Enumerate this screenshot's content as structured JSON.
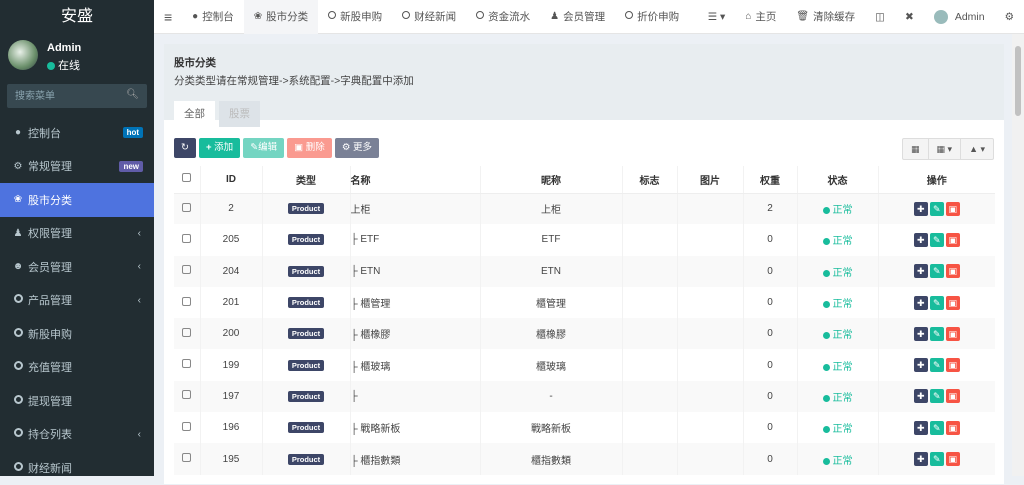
{
  "app": {
    "title": "安盛"
  },
  "user": {
    "name": "Admin",
    "status": "在线"
  },
  "search": {
    "placeholder": "搜索菜单"
  },
  "sidebar": {
    "items": [
      {
        "label": "控制台",
        "icon": "dashboard-icon",
        "badge": "hot",
        "badge_color": "#0073b7"
      },
      {
        "label": "常规管理",
        "icon": "cogs-icon",
        "badge": "new",
        "badge_color": "#605ca8"
      },
      {
        "label": "股市分类",
        "icon": "leaf-icon",
        "active": true
      },
      {
        "label": "权限管理",
        "icon": "users-icon",
        "chevron": true
      },
      {
        "label": "会员管理",
        "icon": "user-circle-icon",
        "chevron": true
      },
      {
        "label": "产品管理",
        "icon": "circle-icon",
        "chevron": true
      },
      {
        "label": "新股申购",
        "icon": "circle-icon"
      },
      {
        "label": "充值管理",
        "icon": "circle-icon"
      },
      {
        "label": "提现管理",
        "icon": "circle-icon"
      },
      {
        "label": "持仓列表",
        "icon": "circle-icon",
        "chevron": true
      },
      {
        "label": "财经新闻",
        "icon": "circle-icon"
      }
    ]
  },
  "topnav": {
    "tabs": [
      {
        "label": "控制台",
        "icon": "dashboard-icon"
      },
      {
        "label": "股市分类",
        "icon": "leaf-icon",
        "active": true
      },
      {
        "label": "新股申购",
        "icon": "circle-icon"
      },
      {
        "label": "财经新闻",
        "icon": "circle-icon"
      },
      {
        "label": "资金流水",
        "icon": "circle-icon"
      },
      {
        "label": "会员管理",
        "icon": "user-icon"
      },
      {
        "label": "折价申购",
        "icon": "circle-icon"
      }
    ],
    "home": "主页",
    "clear_cache": "清除缓存",
    "admin": "Admin"
  },
  "panel": {
    "title": "股市分类",
    "description": "分类类型请在常规管理->系统配置->字典配置中添加",
    "tabs": [
      "全部",
      "股票"
    ]
  },
  "toolbar": {
    "add": "添加",
    "edit": "编辑",
    "delete": "删除",
    "more": "更多"
  },
  "colors": {
    "sidebar": "#222d32",
    "active": "#4e73df",
    "primary": "#18bc9c",
    "danger": "#f75444",
    "dark": "#3d4667"
  },
  "table": {
    "headers": [
      "ID",
      "类型",
      "名称",
      "昵称",
      "标志",
      "图片",
      "权重",
      "状态",
      "操作"
    ],
    "rows": [
      {
        "id": "2",
        "type": "Product",
        "name": "上柜",
        "nickname": "上柜",
        "weight": "2",
        "status": "正常"
      },
      {
        "id": "205",
        "type": "Product",
        "name": "├ ETF",
        "nickname": "ETF",
        "weight": "0",
        "status": "正常"
      },
      {
        "id": "204",
        "type": "Product",
        "name": "├ ETN",
        "nickname": "ETN",
        "weight": "0",
        "status": "正常"
      },
      {
        "id": "201",
        "type": "Product",
        "name": "├ 櫃管理",
        "nickname": "櫃管理",
        "weight": "0",
        "status": "正常"
      },
      {
        "id": "200",
        "type": "Product",
        "name": "├ 櫃橡膠",
        "nickname": "櫃橡膠",
        "weight": "0",
        "status": "正常"
      },
      {
        "id": "199",
        "type": "Product",
        "name": "├ 櫃玻璃",
        "nickname": "櫃玻璃",
        "weight": "0",
        "status": "正常"
      },
      {
        "id": "197",
        "type": "Product",
        "name": "├",
        "nickname": "-",
        "weight": "0",
        "status": "正常"
      },
      {
        "id": "196",
        "type": "Product",
        "name": "├ 戰略新板",
        "nickname": "戰略新板",
        "weight": "0",
        "status": "正常"
      },
      {
        "id": "195",
        "type": "Product",
        "name": "├ 櫃指數類",
        "nickname": "櫃指數類",
        "weight": "0",
        "status": "正常"
      }
    ]
  }
}
